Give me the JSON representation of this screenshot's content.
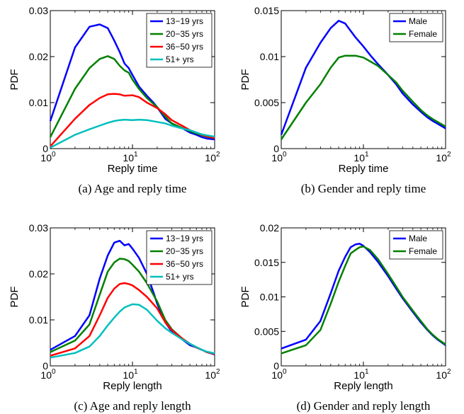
{
  "chart_data": [
    {
      "type": "line",
      "caption": "(a)  Age and reply time",
      "xlabel": "Reply time",
      "ylabel": "PDF",
      "xscale": "log",
      "xlim": [
        1,
        100
      ],
      "ylim": [
        0,
        0.03
      ],
      "yticks": [
        "0",
        "0.01",
        "0.02",
        "0.03"
      ],
      "xticks": [
        {
          "base": "10",
          "exp": "0"
        },
        {
          "base": "10",
          "exp": "1"
        },
        {
          "base": "10",
          "exp": "2"
        }
      ],
      "legend_position": "top-right",
      "series": [
        {
          "name": "13−19 yrs",
          "color": "#0000ff",
          "x": [
            1,
            2,
            3,
            4,
            5,
            6,
            7,
            8,
            9,
            10,
            12,
            15,
            18,
            20,
            25,
            30,
            40,
            50,
            60,
            70,
            80,
            100
          ],
          "y": [
            0.006,
            0.022,
            0.0265,
            0.027,
            0.0262,
            0.0235,
            0.021,
            0.0185,
            0.0175,
            0.016,
            0.0135,
            0.0115,
            0.01,
            0.009,
            0.0065,
            0.0055,
            0.0045,
            0.0035,
            0.003,
            0.0025,
            0.0022,
            0.002
          ]
        },
        {
          "name": "20−35 yrs",
          "color": "#008000",
          "x": [
            1,
            2,
            3,
            4,
            5,
            6,
            7,
            8,
            9,
            10,
            12,
            15,
            20,
            25,
            30,
            40,
            50,
            60,
            70,
            80,
            100
          ],
          "y": [
            0.0025,
            0.013,
            0.0175,
            0.0195,
            0.0201,
            0.0195,
            0.018,
            0.017,
            0.0165,
            0.015,
            0.013,
            0.011,
            0.009,
            0.007,
            0.0055,
            0.0045,
            0.0038,
            0.0033,
            0.0029,
            0.0026,
            0.0023
          ]
        },
        {
          "name": "36−50 yrs",
          "color": "#ff0000",
          "x": [
            1,
            2,
            3,
            4,
            5,
            6,
            7,
            8,
            10,
            12,
            15,
            20,
            25,
            30,
            40,
            50,
            60,
            70,
            80,
            100
          ],
          "y": [
            0.0005,
            0.0065,
            0.0095,
            0.011,
            0.0118,
            0.0119,
            0.0118,
            0.0115,
            0.0116,
            0.0112,
            0.01,
            0.0088,
            0.0075,
            0.0062,
            0.005,
            0.004,
            0.0035,
            0.003,
            0.0027,
            0.0023
          ]
        },
        {
          "name": "51+ yrs",
          "color": "#00bfbf",
          "x": [
            1,
            2,
            3,
            4,
            5,
            6,
            7,
            8,
            10,
            12,
            15,
            20,
            25,
            30,
            40,
            50,
            60,
            70,
            80,
            100
          ],
          "y": [
            0.0002,
            0.003,
            0.0042,
            0.005,
            0.0056,
            0.006,
            0.0062,
            0.0063,
            0.0062,
            0.0063,
            0.0062,
            0.0058,
            0.0055,
            0.005,
            0.0044,
            0.004,
            0.0035,
            0.0031,
            0.0029,
            0.0026
          ]
        }
      ]
    },
    {
      "type": "line",
      "caption": "(b)  Gender and reply time",
      "xlabel": "Reply time",
      "ylabel": "PDF",
      "xscale": "log",
      "xlim": [
        1,
        100
      ],
      "ylim": [
        0,
        0.015
      ],
      "yticks": [
        "0",
        "0.005",
        "0.01",
        "0.015"
      ],
      "xticks": [
        {
          "base": "10",
          "exp": "0"
        },
        {
          "base": "10",
          "exp": "1"
        },
        {
          "base": "10",
          "exp": "2"
        }
      ],
      "legend_position": "top-right",
      "series": [
        {
          "name": "Male",
          "color": "#0000ff",
          "x": [
            1,
            2,
            3,
            4,
            5,
            6,
            7,
            8,
            10,
            12,
            15,
            20,
            25,
            30,
            40,
            50,
            60,
            70,
            80,
            100
          ],
          "y": [
            0.0015,
            0.0088,
            0.0115,
            0.0131,
            0.0139,
            0.0136,
            0.0128,
            0.0121,
            0.0111,
            0.0102,
            0.0092,
            0.008,
            0.007,
            0.006,
            0.0048,
            0.004,
            0.0034,
            0.003,
            0.0027,
            0.0022
          ]
        },
        {
          "name": "Female",
          "color": "#008000",
          "x": [
            1,
            2,
            3,
            4,
            5,
            6,
            7,
            8,
            10,
            12,
            15,
            20,
            25,
            30,
            40,
            50,
            60,
            70,
            80,
            100
          ],
          "y": [
            0.001,
            0.005,
            0.007,
            0.0088,
            0.0099,
            0.0101,
            0.0101,
            0.0101,
            0.0099,
            0.0095,
            0.009,
            0.008,
            0.0072,
            0.0063,
            0.0051,
            0.0042,
            0.0036,
            0.0032,
            0.0029,
            0.0024
          ]
        }
      ]
    },
    {
      "type": "line",
      "caption": "(c)  Age and reply length",
      "xlabel": "Reply length",
      "ylabel": "PDF",
      "xscale": "log",
      "xlim": [
        1,
        100
      ],
      "ylim": [
        0,
        0.03
      ],
      "yticks": [
        "0",
        "0.01",
        "0.02",
        "0.03"
      ],
      "xticks": [
        {
          "base": "10",
          "exp": "0"
        },
        {
          "base": "10",
          "exp": "1"
        },
        {
          "base": "10",
          "exp": "2"
        }
      ],
      "legend_position": "top-right",
      "series": [
        {
          "name": "13−19 yrs",
          "color": "#0000ff",
          "x": [
            1,
            2,
            3,
            4,
            5,
            6,
            7,
            8,
            9,
            10,
            12,
            15,
            18,
            20,
            25,
            30,
            40,
            50,
            60,
            70,
            80,
            100
          ],
          "y": [
            0.0035,
            0.0065,
            0.011,
            0.019,
            0.024,
            0.0268,
            0.0272,
            0.0262,
            0.0265,
            0.0255,
            0.0235,
            0.02,
            0.016,
            0.0135,
            0.0095,
            0.0075,
            0.0058,
            0.0045,
            0.004,
            0.0035,
            0.003,
            0.0025
          ]
        },
        {
          "name": "20−35 yrs",
          "color": "#008000",
          "x": [
            1,
            2,
            3,
            4,
            5,
            6,
            7,
            8,
            9,
            10,
            12,
            15,
            20,
            25,
            30,
            40,
            50,
            60,
            70,
            80,
            100
          ],
          "y": [
            0.003,
            0.0055,
            0.009,
            0.0155,
            0.0205,
            0.0225,
            0.0233,
            0.0232,
            0.0228,
            0.022,
            0.0205,
            0.018,
            0.014,
            0.01,
            0.008,
            0.006,
            0.0048,
            0.004,
            0.0035,
            0.003,
            0.0026
          ]
        },
        {
          "name": "36−50 yrs",
          "color": "#ff0000",
          "x": [
            1,
            2,
            3,
            4,
            5,
            6,
            7,
            8,
            9,
            10,
            12,
            15,
            20,
            25,
            30,
            40,
            50,
            60,
            70,
            80,
            100
          ],
          "y": [
            0.0022,
            0.0038,
            0.0065,
            0.011,
            0.0148,
            0.0168,
            0.0178,
            0.018,
            0.0178,
            0.0175,
            0.0165,
            0.015,
            0.0125,
            0.0095,
            0.0078,
            0.006,
            0.0048,
            0.004,
            0.0035,
            0.003,
            0.0026
          ]
        },
        {
          "name": "51+ yrs",
          "color": "#00bfbf",
          "x": [
            1,
            2,
            3,
            4,
            5,
            6,
            7,
            8,
            10,
            12,
            15,
            20,
            25,
            30,
            40,
            50,
            60,
            70,
            80,
            100
          ],
          "y": [
            0.0018,
            0.0028,
            0.0042,
            0.0065,
            0.0088,
            0.0105,
            0.0118,
            0.0127,
            0.0134,
            0.0133,
            0.0122,
            0.0098,
            0.0082,
            0.0072,
            0.0058,
            0.0048,
            0.0041,
            0.0035,
            0.0031,
            0.0027
          ]
        }
      ]
    },
    {
      "type": "line",
      "caption": "(d)  Gender and reply length",
      "xlabel": "Reply length",
      "ylabel": "PDF",
      "xscale": "log",
      "xlim": [
        1,
        100
      ],
      "ylim": [
        0,
        0.02
      ],
      "yticks": [
        "0",
        "0.005",
        "0.01",
        "0.015",
        "0.02"
      ],
      "xticks": [
        {
          "base": "10",
          "exp": "0"
        },
        {
          "base": "10",
          "exp": "1"
        },
        {
          "base": "10",
          "exp": "2"
        }
      ],
      "legend_position": "top-right",
      "series": [
        {
          "name": "Male",
          "color": "#0000ff",
          "x": [
            1,
            2,
            3,
            4,
            5,
            6,
            7,
            8,
            9,
            10,
            12,
            15,
            20,
            25,
            30,
            40,
            50,
            60,
            70,
            80,
            100
          ],
          "y": [
            0.0025,
            0.0038,
            0.0065,
            0.0105,
            0.0138,
            0.0158,
            0.0172,
            0.0176,
            0.0177,
            0.0174,
            0.0165,
            0.0151,
            0.013,
            0.0112,
            0.0098,
            0.0078,
            0.0063,
            0.0052,
            0.0044,
            0.0038,
            0.003
          ]
        },
        {
          "name": "Female",
          "color": "#008000",
          "x": [
            1,
            2,
            3,
            4,
            5,
            6,
            7,
            8,
            9,
            10,
            12,
            15,
            20,
            25,
            30,
            40,
            50,
            60,
            70,
            80,
            100
          ],
          "y": [
            0.0018,
            0.003,
            0.0052,
            0.009,
            0.0122,
            0.0145,
            0.0163,
            0.0168,
            0.0172,
            0.0173,
            0.0168,
            0.0155,
            0.0133,
            0.0115,
            0.01,
            0.008,
            0.0065,
            0.0053,
            0.0045,
            0.0039,
            0.0031
          ]
        }
      ]
    }
  ]
}
